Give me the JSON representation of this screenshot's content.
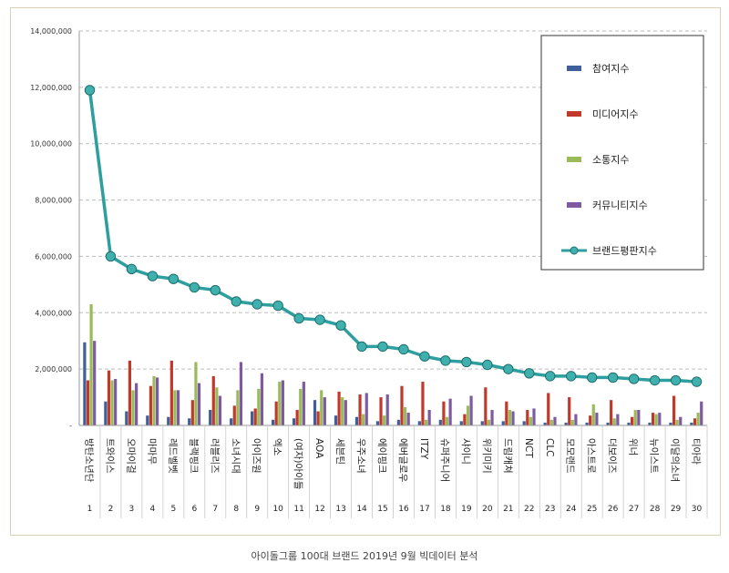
{
  "caption": "아이돌그룹 100대 브랜드 2019년 9월 빅데이터 분석",
  "chart_data": {
    "type": "bar+line",
    "ylim": [
      0,
      14000000
    ],
    "yticks": [
      "-",
      "2,000,000",
      "4,000,000",
      "6,000,000",
      "8,000,000",
      "10,000,000",
      "12,000,000",
      "14,000,000"
    ],
    "grid": true,
    "legend_position": "top-right",
    "categories": [
      "방탄소년단",
      "트와이스",
      "오마이걸",
      "마마무",
      "레드벨벳",
      "블랙핑크",
      "러블리즈",
      "소녀시대",
      "아이즈원",
      "엑소",
      "(여자)아이들",
      "AOA",
      "세븐틴",
      "우주소녀",
      "에이핑크",
      "에버글로우",
      "ITZY",
      "슈퍼주니어",
      "샤이니",
      "위키미키",
      "드림캐쳐",
      "NCT",
      "CLC",
      "모모랜드",
      "아스트로",
      "더보이즈",
      "위너",
      "뉴이스트",
      "이달의소녀",
      "티아라"
    ],
    "ranks": [
      "1",
      "2",
      "3",
      "4",
      "5",
      "6",
      "7",
      "8",
      "9",
      "10",
      "11",
      "12",
      "13",
      "14",
      "15",
      "16",
      "17",
      "18",
      "19",
      "20",
      "21",
      "22",
      "23",
      "24",
      "25",
      "26",
      "27",
      "28",
      "29",
      "30"
    ],
    "series": [
      {
        "name": "참여지수",
        "color": "#3f5f9b",
        "kind": "bar",
        "values": [
          2950000,
          850000,
          500000,
          350000,
          300000,
          250000,
          550000,
          250000,
          500000,
          200000,
          250000,
          900000,
          350000,
          300000,
          150000,
          200000,
          150000,
          200000,
          150000,
          150000,
          150000,
          150000,
          100000,
          100000,
          100000,
          100000,
          100000,
          100000,
          100000,
          100000
        ]
      },
      {
        "name": "미디어지수",
        "color": "#c0392b",
        "kind": "bar",
        "values": [
          1600000,
          1950000,
          2300000,
          1400000,
          2300000,
          900000,
          1750000,
          700000,
          600000,
          850000,
          550000,
          500000,
          1200000,
          1100000,
          1000000,
          1400000,
          1550000,
          850000,
          400000,
          1350000,
          850000,
          550000,
          1150000,
          1000000,
          350000,
          900000,
          300000,
          450000,
          1050000,
          250000
        ]
      },
      {
        "name": "소통지수",
        "color": "#9bbb59",
        "kind": "bar",
        "values": [
          4300000,
          1600000,
          1250000,
          1750000,
          1250000,
          2250000,
          1350000,
          1250000,
          1300000,
          1550000,
          1300000,
          1250000,
          1000000,
          400000,
          350000,
          650000,
          200000,
          300000,
          700000,
          200000,
          550000,
          300000,
          200000,
          200000,
          750000,
          250000,
          550000,
          400000,
          200000,
          450000
        ]
      },
      {
        "name": "커뮤니티지수",
        "color": "#7e5aa0",
        "kind": "bar",
        "values": [
          3000000,
          1650000,
          1500000,
          1700000,
          1250000,
          1500000,
          1050000,
          2250000,
          1850000,
          1600000,
          1550000,
          1000000,
          900000,
          1150000,
          1100000,
          450000,
          550000,
          950000,
          1050000,
          550000,
          500000,
          600000,
          300000,
          400000,
          450000,
          400000,
          550000,
          450000,
          300000,
          850000
        ]
      },
      {
        "name": "브랜드평판지수",
        "color": "#2e9e9e",
        "kind": "line",
        "values": [
          11900000,
          6000000,
          5550000,
          5300000,
          5200000,
          4900000,
          4800000,
          4400000,
          4300000,
          4250000,
          3800000,
          3750000,
          3550000,
          2800000,
          2800000,
          2700000,
          2450000,
          2300000,
          2250000,
          2150000,
          2000000,
          1850000,
          1750000,
          1750000,
          1700000,
          1700000,
          1650000,
          1600000,
          1600000,
          1550000
        ]
      }
    ]
  }
}
